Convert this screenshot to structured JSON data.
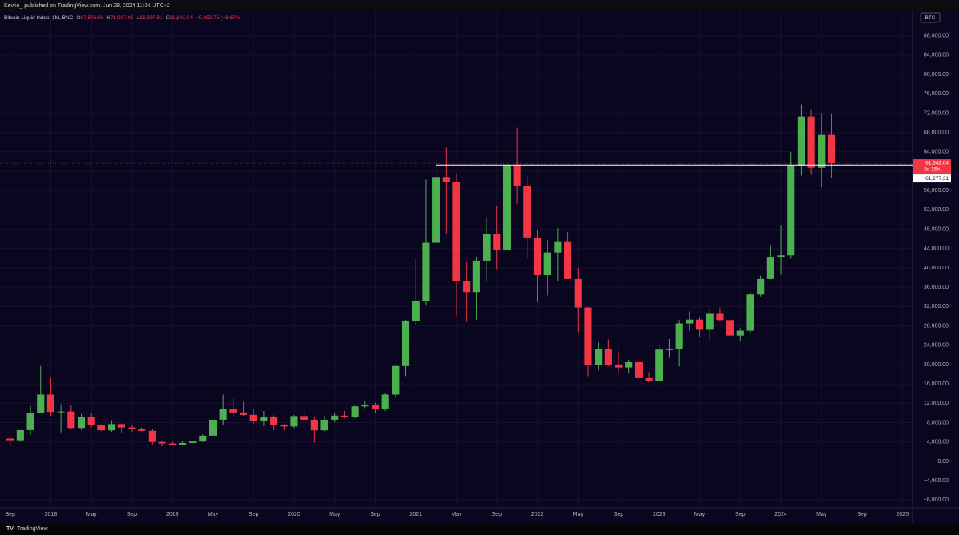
{
  "header": "Kevko_ published on TradingView.com, Jun 28, 2024 11:04 UTC+2",
  "footer": "TradingView",
  "chart_data": {
    "type": "candlestick",
    "symbol_badge": "BTC",
    "legend": {
      "title": "Bitcoin Liquid Index, 1M, BNC",
      "letters": [
        "O",
        "H",
        "L",
        "C"
      ],
      "values": [
        "67,506.96",
        "71,927.09",
        "58,597.81",
        "61,642.04"
      ],
      "change": "−5,852.76 (−8.67%)"
    },
    "up_color": "#4caf50",
    "down_color": "#f23645",
    "grid": true,
    "x": [
      "2017-09",
      "2017-10",
      "2017-11",
      "2017-12",
      "2018-01",
      "2018-02",
      "2018-03",
      "2018-04",
      "2018-05",
      "2018-06",
      "2018-07",
      "2018-08",
      "2018-09",
      "2018-10",
      "2018-11",
      "2018-12",
      "2019-01",
      "2019-02",
      "2019-03",
      "2019-04",
      "2019-05",
      "2019-06",
      "2019-07",
      "2019-08",
      "2019-09",
      "2019-10",
      "2019-11",
      "2019-12",
      "2020-01",
      "2020-02",
      "2020-03",
      "2020-04",
      "2020-05",
      "2020-06",
      "2020-07",
      "2020-08",
      "2020-09",
      "2020-10",
      "2020-11",
      "2020-12",
      "2021-01",
      "2021-02",
      "2021-03",
      "2021-04",
      "2021-05",
      "2021-06",
      "2021-07",
      "2021-08",
      "2021-09",
      "2021-10",
      "2021-11",
      "2021-12",
      "2022-01",
      "2022-02",
      "2022-03",
      "2022-04",
      "2022-05",
      "2022-06",
      "2022-07",
      "2022-08",
      "2022-09",
      "2022-10",
      "2022-11",
      "2022-12",
      "2023-01",
      "2023-02",
      "2023-03",
      "2023-04",
      "2023-05",
      "2023-06",
      "2023-07",
      "2023-08",
      "2023-09",
      "2023-10",
      "2023-11",
      "2023-12",
      "2024-01",
      "2024-02",
      "2024-03",
      "2024-04",
      "2024-05",
      "2024-06"
    ],
    "open": [
      4700,
      4350,
      6450,
      10000,
      13800,
      10200,
      10300,
      6900,
      9200,
      7500,
      6400,
      7700,
      7000,
      6600,
      6300,
      4000,
      3700,
      3450,
      3800,
      4100,
      5300,
      8600,
      10800,
      10100,
      9600,
      8300,
      9200,
      7600,
      7200,
      9350,
      8600,
      6400,
      8600,
      9450,
      9150,
      11350,
      11650,
      10800,
      13800,
      19700,
      29000,
      33100,
      45200,
      58800,
      57700,
      37300,
      35000,
      41500,
      47100,
      43800,
      61300,
      57000,
      46300,
      38500,
      43200,
      45500,
      37700,
      31800,
      19900,
      23300,
      20000,
      19400,
      20500,
      17200,
      16600,
      23100,
      23150,
      28500,
      29300,
      27200,
      30500,
      29200,
      26000,
      27000,
      34500,
      37700,
      42300,
      42600,
      61200,
      71300,
      60700,
      67506.96
    ],
    "high": [
      5000,
      6450,
      11400,
      19700,
      17200,
      11800,
      11700,
      9800,
      10000,
      7800,
      8500,
      7800,
      7400,
      7000,
      6600,
      4300,
      4100,
      4200,
      4100,
      5600,
      9000,
      13800,
      13100,
      12300,
      10900,
      10400,
      9500,
      7700,
      9600,
      10500,
      9200,
      9500,
      10100,
      10400,
      11500,
      12500,
      12100,
      14100,
      19900,
      29300,
      41900,
      58300,
      61800,
      64900,
      59600,
      41300,
      42300,
      50500,
      52900,
      67000,
      69000,
      59100,
      47900,
      45800,
      48200,
      47400,
      40000,
      31900,
      24600,
      25200,
      22800,
      21000,
      21400,
      18400,
      23900,
      25300,
      29200,
      31000,
      29900,
      31400,
      31800,
      30200,
      27500,
      35000,
      38400,
      44700,
      48900,
      64000,
      73800,
      72800,
      72000,
      71927.09
    ],
    "low": [
      3000,
      4100,
      5500,
      10900,
      9400,
      6000,
      6600,
      6500,
      7000,
      5800,
      6100,
      5900,
      6100,
      6200,
      3500,
      3100,
      3400,
      3400,
      3700,
      4000,
      5300,
      7500,
      9100,
      9400,
      7800,
      7300,
      6500,
      6400,
      6900,
      8500,
      3900,
      6200,
      8100,
      8900,
      8900,
      11000,
      9900,
      10400,
      13200,
      17600,
      28100,
      32400,
      45000,
      47000,
      30000,
      28800,
      29300,
      37300,
      39600,
      43300,
      53300,
      42000,
      32900,
      34300,
      37200,
      37700,
      26700,
      17600,
      18800,
      19600,
      18200,
      18200,
      15500,
      16300,
      16500,
      21400,
      19600,
      26900,
      25800,
      24800,
      28900,
      25400,
      24900,
      26600,
      34100,
      37600,
      38600,
      41900,
      59100,
      59200,
      56600,
      58597.81
    ],
    "close": [
      4350,
      6450,
      10000,
      13800,
      10200,
      10300,
      6900,
      9200,
      7500,
      6400,
      7700,
      7000,
      6600,
      6300,
      4000,
      3700,
      3450,
      3800,
      4100,
      5300,
      8600,
      10800,
      10100,
      9600,
      8300,
      9200,
      7600,
      7200,
      9350,
      8600,
      6400,
      8600,
      9450,
      9150,
      11350,
      11650,
      10800,
      13800,
      19700,
      29000,
      33100,
      45200,
      58800,
      57700,
      37300,
      35000,
      41500,
      47100,
      43800,
      61300,
      57000,
      46300,
      38500,
      43200,
      45500,
      37700,
      31800,
      19900,
      23300,
      20000,
      19400,
      20500,
      17200,
      16600,
      23100,
      23150,
      28500,
      29300,
      27200,
      30500,
      29200,
      26000,
      27000,
      34500,
      37700,
      42300,
      42600,
      61200,
      71300,
      60700,
      67500,
      61642.04
    ],
    "last_price": {
      "label": "61,642.04",
      "countdown": "2d 15h"
    },
    "hline": {
      "value": 61277.31,
      "label": "61,277.31",
      "start": "2021-03"
    },
    "xlim": [
      "2017-08",
      "2025-02"
    ],
    "xticks": [
      {
        "value": "2017-09",
        "label": "Sep"
      },
      {
        "value": "2018-01",
        "label": "2018"
      },
      {
        "value": "2018-05",
        "label": "May"
      },
      {
        "value": "2018-09",
        "label": "Sep"
      },
      {
        "value": "2019-01",
        "label": "2019"
      },
      {
        "value": "2019-05",
        "label": "May"
      },
      {
        "value": "2019-09",
        "label": "Sep"
      },
      {
        "value": "2020-01",
        "label": "2020"
      },
      {
        "value": "2020-05",
        "label": "May"
      },
      {
        "value": "2020-09",
        "label": "Sep"
      },
      {
        "value": "2021-01",
        "label": "2021"
      },
      {
        "value": "2021-05",
        "label": "May"
      },
      {
        "value": "2021-09",
        "label": "Sep"
      },
      {
        "value": "2022-01",
        "label": "2022"
      },
      {
        "value": "2022-05",
        "label": "May"
      },
      {
        "value": "2022-09",
        "label": "Sep"
      },
      {
        "value": "2023-01",
        "label": "2023"
      },
      {
        "value": "2023-05",
        "label": "May"
      },
      {
        "value": "2023-09",
        "label": "Sep"
      },
      {
        "value": "2024-01",
        "label": "2024"
      },
      {
        "value": "2024-05",
        "label": "May"
      },
      {
        "value": "2024-09",
        "label": "Sep"
      },
      {
        "value": "2025-01",
        "label": "2025"
      }
    ],
    "ylim": [
      -9600,
      92900
    ],
    "yticks": [
      {
        "value": -8000,
        "label": "−8,000.00"
      },
      {
        "value": -4000,
        "label": "−4,000.00"
      },
      {
        "value": 0,
        "label": "0.00"
      },
      {
        "value": 4000,
        "label": "4,000.00"
      },
      {
        "value": 8000,
        "label": "8,000.00"
      },
      {
        "value": 12000,
        "label": "12,000.00"
      },
      {
        "value": 16000,
        "label": "16,000.00"
      },
      {
        "value": 20000,
        "label": "20,000.00"
      },
      {
        "value": 24000,
        "label": "24,000.00"
      },
      {
        "value": 28000,
        "label": "28,000.00"
      },
      {
        "value": 32000,
        "label": "32,000.00"
      },
      {
        "value": 36000,
        "label": "36,000.00"
      },
      {
        "value": 40000,
        "label": "40,000.00"
      },
      {
        "value": 44000,
        "label": "44,000.00"
      },
      {
        "value": 48000,
        "label": "48,000.00"
      },
      {
        "value": 52000,
        "label": "52,000.00"
      },
      {
        "value": 56000,
        "label": "56,000.00"
      },
      {
        "value": 60000,
        "label": "60,000.00"
      },
      {
        "value": 64000,
        "label": "64,000.00"
      },
      {
        "value": 68000,
        "label": "68,000.00"
      },
      {
        "value": 72000,
        "label": "72,000.00"
      },
      {
        "value": 76000,
        "label": "76,000.00"
      },
      {
        "value": 80000,
        "label": "80,000.00"
      },
      {
        "value": 84000,
        "label": "84,000.00"
      },
      {
        "value": 88000,
        "label": "88,000.00"
      }
    ]
  }
}
